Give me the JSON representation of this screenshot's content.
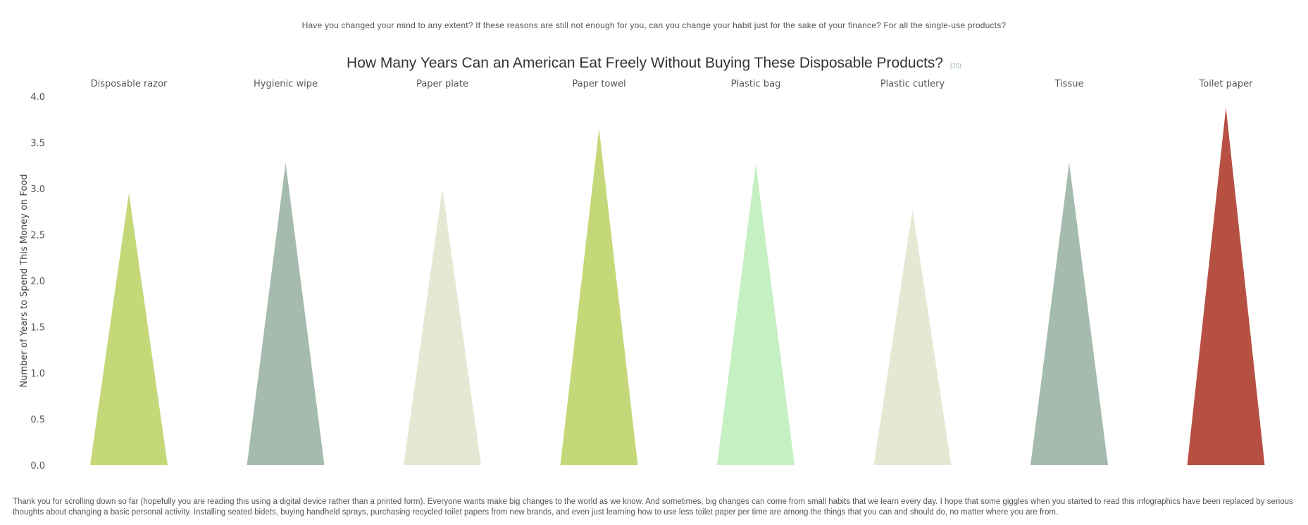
{
  "intro_text": "Have you changed your mind to any extent? If these reasons are still not enough for you, can you change your habit just for the sake of your finance? For all the single-use products?",
  "title": "How Many Years Can an American Eat Freely Without Buying These Disposable Products?",
  "title_ref": "(10)",
  "outro_text": "Thank you for scrolling down so far (hopefully you are reading this using a digital device rather than a printed form). Everyone wants make big changes to the world as we know. And sometimes, big changes can come from small  habits that we learn every day. I hope that some giggles when you started to read this infographics have been replaced by serious thoughts about changing a basic personal activity. Installing seated bidets, buying handheld sprays, purchasing recycled toilet papers from new brands, and even just learning how to use less toilet paper per time are among the things that you can and should do, no matter where you are from.",
  "chart_data": {
    "type": "bar",
    "bar_shape": "triangle",
    "categories": [
      "Disposable razor",
      "Hygienic wipe",
      "Paper plate",
      "Paper towel",
      "Plastic bag",
      "Plastic cutlery",
      "Tissue",
      "Toilet paper"
    ],
    "values": [
      2.95,
      3.28,
      3.0,
      3.65,
      3.27,
      2.77,
      3.28,
      3.88
    ],
    "colors": [
      "#c4d879",
      "#a5bbad",
      "#e5e8d3",
      "#c4d879",
      "#c5f0c2",
      "#e5e8d3",
      "#a5bbad",
      "#b65043"
    ],
    "ylabel": "Number of Years to Spend This Money on Food",
    "xlabel": "",
    "ylim": [
      0,
      4.0
    ],
    "yticks": [
      "0.0",
      "0.5",
      "1.0",
      "1.5",
      "2.0",
      "2.5",
      "3.0",
      "3.5",
      "4.0"
    ],
    "category_labels_position": "top",
    "grid": false
  }
}
